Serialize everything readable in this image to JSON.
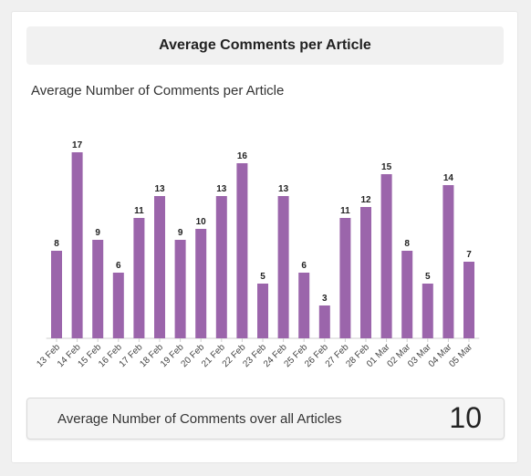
{
  "panel": {
    "title": "Average Comments per Article",
    "summary_label": "Average Number of Comments over all Articles",
    "summary_value": "10"
  },
  "chart_data": {
    "type": "bar",
    "title": "Average Number of Comments per Article",
    "categories": [
      "13 Feb",
      "14 Feb",
      "15 Feb",
      "16 Feb",
      "17 Feb",
      "18 Feb",
      "19 Feb",
      "20 Feb",
      "21 Feb",
      "22 Feb",
      "23 Feb",
      "24 Feb",
      "25 Feb",
      "26 Feb",
      "27 Feb",
      "28 Feb",
      "01 Mar",
      "02 Mar",
      "03 Mar",
      "04 Mar",
      "05 Mar"
    ],
    "values": [
      8,
      17,
      9,
      6,
      11,
      13,
      9,
      10,
      13,
      16,
      5,
      13,
      6,
      3,
      11,
      12,
      15,
      8,
      5,
      14,
      7
    ],
    "ylim": [
      0,
      17
    ],
    "grid": false,
    "bar_color": "#9b65ab"
  }
}
